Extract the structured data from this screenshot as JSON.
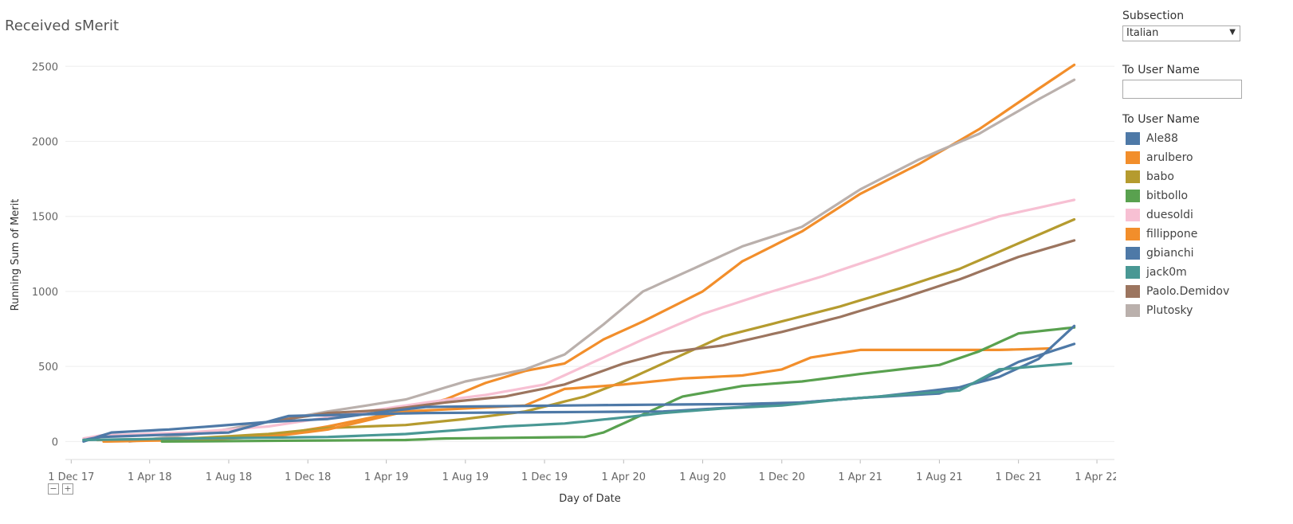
{
  "colors": {
    "Ale88": "#4e79a7",
    "arulbero": "#f28e2b",
    "babo": "#b59b2f",
    "bitbollo": "#59a14f",
    "duesoldi": "#f7c0d3",
    "fillippone": "#f28e2b",
    "gbianchi": "#4e79a7",
    "jack0m": "#499894",
    "Paolo.Demidov": "#9c755f",
    "Plutosky": "#bab0ac"
  },
  "filters": {
    "subsection_label": "Subsection",
    "subsection_value": "Italian",
    "username_label": "To User Name",
    "username_value": ""
  },
  "legend": {
    "title": "To User Name",
    "items": [
      "Ale88",
      "arulbero",
      "babo",
      "bitbollo",
      "duesoldi",
      "fillippone",
      "gbianchi",
      "jack0m",
      "Paolo.Demidov",
      "Plutosky"
    ]
  },
  "chart_data": {
    "type": "line",
    "title": "Received sMerit",
    "xlabel": "Day of Date",
    "ylabel": "Running Sum of Merit",
    "x_ticks": [
      "1 Dec 17",
      "1 Apr 18",
      "1 Aug 18",
      "1 Dec 18",
      "1 Apr 19",
      "1 Aug 19",
      "1 Dec 19",
      "1 Apr 20",
      "1 Aug 20",
      "1 Dec 20",
      "1 Apr 21",
      "1 Aug 21",
      "1 Dec 21",
      "1 Apr 22"
    ],
    "y_ticks": [
      "0",
      "500",
      "1000",
      "1500",
      "2000",
      "2500"
    ],
    "ylim": [
      -120,
      2650
    ],
    "xlim": [
      "2017-11-22",
      "2022-04-28"
    ],
    "grid": true,
    "legend_position": "right",
    "series": [
      {
        "name": "arulbero",
        "points": [
          [
            "2018-01-20",
            0
          ],
          [
            "2018-06-01",
            20
          ],
          [
            "2018-10-01",
            35
          ],
          [
            "2019-01-01",
            100
          ],
          [
            "2019-04-01",
            180
          ],
          [
            "2019-07-01",
            280
          ],
          [
            "2019-09-01",
            390
          ],
          [
            "2019-11-01",
            470
          ],
          [
            "2020-01-01",
            520
          ],
          [
            "2020-03-01",
            680
          ],
          [
            "2020-05-01",
            800
          ],
          [
            "2020-08-01",
            1000
          ],
          [
            "2020-10-01",
            1200
          ],
          [
            "2021-01-01",
            1400
          ],
          [
            "2021-04-01",
            1650
          ],
          [
            "2021-07-01",
            1850
          ],
          [
            "2021-10-01",
            2080
          ],
          [
            "2022-01-01",
            2350
          ],
          [
            "2022-02-25",
            2510
          ]
        ]
      },
      {
        "name": "Plutosky",
        "points": [
          [
            "2018-03-01",
            0
          ],
          [
            "2018-07-01",
            60
          ],
          [
            "2019-01-01",
            200
          ],
          [
            "2019-05-01",
            280
          ],
          [
            "2019-08-01",
            400
          ],
          [
            "2019-11-01",
            480
          ],
          [
            "2020-01-01",
            580
          ],
          [
            "2020-03-01",
            780
          ],
          [
            "2020-05-01",
            1000
          ],
          [
            "2020-08-01",
            1180
          ],
          [
            "2020-10-01",
            1300
          ],
          [
            "2021-01-01",
            1430
          ],
          [
            "2021-04-01",
            1680
          ],
          [
            "2021-07-01",
            1880
          ],
          [
            "2021-10-01",
            2050
          ],
          [
            "2022-01-01",
            2280
          ],
          [
            "2022-02-25",
            2410
          ]
        ]
      },
      {
        "name": "duesoldi",
        "points": [
          [
            "2017-12-20",
            20
          ],
          [
            "2018-01-15",
            40
          ],
          [
            "2018-06-01",
            60
          ],
          [
            "2018-10-01",
            100
          ],
          [
            "2019-03-01",
            200
          ],
          [
            "2019-06-01",
            260
          ],
          [
            "2019-09-01",
            310
          ],
          [
            "2019-12-01",
            380
          ],
          [
            "2020-03-01",
            560
          ],
          [
            "2020-05-01",
            680
          ],
          [
            "2020-08-01",
            850
          ],
          [
            "2020-11-01",
            980
          ],
          [
            "2021-02-01",
            1100
          ],
          [
            "2021-05-01",
            1230
          ],
          [
            "2021-08-01",
            1370
          ],
          [
            "2021-11-01",
            1500
          ],
          [
            "2022-02-25",
            1610
          ]
        ]
      },
      {
        "name": "babo",
        "points": [
          [
            "2018-01-10",
            10
          ],
          [
            "2018-06-01",
            20
          ],
          [
            "2018-10-01",
            50
          ],
          [
            "2019-01-01",
            90
          ],
          [
            "2019-05-01",
            110
          ],
          [
            "2019-08-01",
            150
          ],
          [
            "2019-11-01",
            200
          ],
          [
            "2020-02-01",
            300
          ],
          [
            "2020-04-01",
            400
          ],
          [
            "2020-06-01",
            520
          ],
          [
            "2020-09-01",
            700
          ],
          [
            "2020-12-01",
            800
          ],
          [
            "2021-03-01",
            900
          ],
          [
            "2021-06-01",
            1020
          ],
          [
            "2021-09-01",
            1150
          ],
          [
            "2021-12-01",
            1320
          ],
          [
            "2022-02-25",
            1480
          ]
        ]
      },
      {
        "name": "Paolo.Demidov",
        "points": [
          [
            "2018-10-01",
            130
          ],
          [
            "2019-01-01",
            190
          ],
          [
            "2019-04-01",
            210
          ],
          [
            "2019-07-01",
            260
          ],
          [
            "2019-10-01",
            300
          ],
          [
            "2020-01-01",
            380
          ],
          [
            "2020-04-01",
            520
          ],
          [
            "2020-06-01",
            590
          ],
          [
            "2020-09-01",
            640
          ],
          [
            "2020-12-01",
            730
          ],
          [
            "2021-03-01",
            830
          ],
          [
            "2021-06-01",
            950
          ],
          [
            "2021-09-01",
            1080
          ],
          [
            "2021-12-01",
            1230
          ],
          [
            "2022-02-25",
            1340
          ]
        ]
      },
      {
        "name": "fillippone",
        "points": [
          [
            "2018-01-20",
            0
          ],
          [
            "2018-06-01",
            10
          ],
          [
            "2018-10-01",
            30
          ],
          [
            "2019-01-01",
            80
          ],
          [
            "2019-05-01",
            200
          ],
          [
            "2019-11-01",
            240
          ],
          [
            "2020-01-01",
            350
          ],
          [
            "2020-04-01",
            380
          ],
          [
            "2020-07-01",
            420
          ],
          [
            "2020-10-01",
            440
          ],
          [
            "2020-12-01",
            480
          ],
          [
            "2021-01-15",
            560
          ],
          [
            "2021-04-01",
            610
          ],
          [
            "2021-11-01",
            610
          ],
          [
            "2022-01-20",
            620
          ]
        ]
      },
      {
        "name": "bitbollo",
        "points": [
          [
            "2018-04-20",
            0
          ],
          [
            "2019-05-01",
            10
          ],
          [
            "2019-07-01",
            20
          ],
          [
            "2020-02-01",
            30
          ],
          [
            "2020-03-01",
            60
          ],
          [
            "2020-05-01",
            180
          ],
          [
            "2020-07-01",
            300
          ],
          [
            "2020-10-01",
            370
          ],
          [
            "2021-01-01",
            400
          ],
          [
            "2021-04-01",
            450
          ],
          [
            "2021-08-01",
            510
          ],
          [
            "2021-10-01",
            600
          ],
          [
            "2021-12-01",
            720
          ],
          [
            "2022-02-25",
            760
          ]
        ]
      },
      {
        "name": "gbianchi",
        "points": [
          [
            "2017-12-20",
            10
          ],
          [
            "2018-01-15",
            30
          ],
          [
            "2018-06-01",
            50
          ],
          [
            "2018-08-01",
            60
          ],
          [
            "2018-11-01",
            170
          ],
          [
            "2019-06-01",
            190
          ],
          [
            "2020-06-01",
            200
          ],
          [
            "2020-10-01",
            230
          ],
          [
            "2021-01-01",
            260
          ],
          [
            "2021-05-01",
            300
          ],
          [
            "2021-09-01",
            360
          ],
          [
            "2021-11-01",
            430
          ],
          [
            "2022-01-01",
            550
          ],
          [
            "2022-02-25",
            770
          ]
        ]
      },
      {
        "name": "Ale88",
        "points": [
          [
            "2017-12-20",
            0
          ],
          [
            "2018-02-01",
            60
          ],
          [
            "2018-05-01",
            80
          ],
          [
            "2018-10-01",
            130
          ],
          [
            "2019-01-01",
            150
          ],
          [
            "2019-04-01",
            200
          ],
          [
            "2019-06-01",
            230
          ],
          [
            "2020-01-01",
            240
          ],
          [
            "2020-10-01",
            250
          ],
          [
            "2021-01-01",
            260
          ],
          [
            "2021-04-01",
            290
          ],
          [
            "2021-08-01",
            320
          ],
          [
            "2021-10-01",
            400
          ],
          [
            "2021-12-01",
            530
          ],
          [
            "2022-02-25",
            650
          ]
        ]
      },
      {
        "name": "jack0m",
        "points": [
          [
            "2017-12-20",
            10
          ],
          [
            "2018-06-01",
            20
          ],
          [
            "2019-01-01",
            30
          ],
          [
            "2019-05-01",
            50
          ],
          [
            "2019-10-01",
            100
          ],
          [
            "2020-01-01",
            120
          ],
          [
            "2020-04-01",
            160
          ],
          [
            "2020-06-01",
            190
          ],
          [
            "2020-09-01",
            220
          ],
          [
            "2020-12-01",
            240
          ],
          [
            "2021-03-01",
            280
          ],
          [
            "2021-06-01",
            310
          ],
          [
            "2021-09-01",
            340
          ],
          [
            "2021-11-01",
            480
          ],
          [
            "2022-02-20",
            520
          ]
        ]
      }
    ]
  }
}
